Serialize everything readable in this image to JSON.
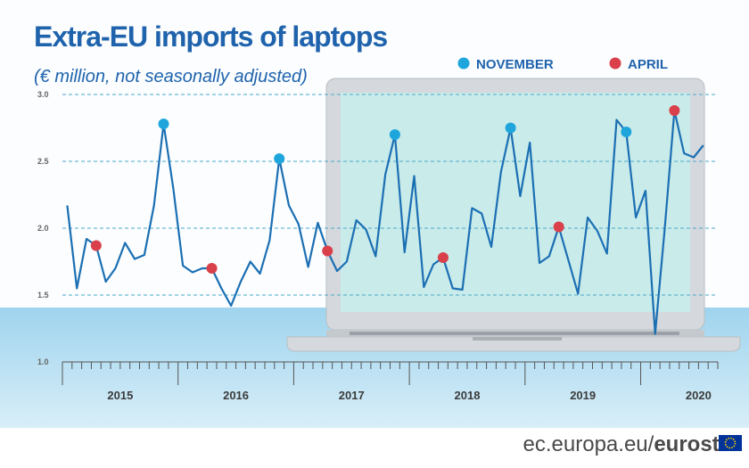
{
  "chart_data": {
    "type": "line",
    "title": "Extra-EU imports of laptops",
    "subtitle": "(€ million, not seasonally adjusted)",
    "x": [
      2015.0417,
      2015.125,
      2015.2083,
      2015.2917,
      2015.375,
      2015.4583,
      2015.5417,
      2015.625,
      2015.7083,
      2015.7917,
      2015.875,
      2015.9583,
      2016.0417,
      2016.125,
      2016.2083,
      2016.2917,
      2016.375,
      2016.4583,
      2016.5417,
      2016.625,
      2016.7083,
      2016.7917,
      2016.875,
      2016.9583,
      2017.0417,
      2017.125,
      2017.2083,
      2017.2917,
      2017.375,
      2017.4583,
      2017.5417,
      2017.625,
      2017.7083,
      2017.7917,
      2017.875,
      2017.9583,
      2018.0417,
      2018.125,
      2018.2083,
      2018.2917,
      2018.375,
      2018.4583,
      2018.5417,
      2018.625,
      2018.7083,
      2018.7917,
      2018.875,
      2018.9583,
      2019.0417,
      2019.125,
      2019.2083,
      2019.2917,
      2019.375,
      2019.4583,
      2019.5417,
      2019.625,
      2019.7083,
      2019.7917,
      2019.875,
      2019.9583,
      2020.0417,
      2020.125,
      2020.2083,
      2020.2917,
      2020.375,
      2020.4583,
      2020.5417
    ],
    "values": [
      2.17,
      1.55,
      1.92,
      1.87,
      1.6,
      1.7,
      1.89,
      1.77,
      1.8,
      2.17,
      2.78,
      2.3,
      1.72,
      1.67,
      1.7,
      1.7,
      1.55,
      1.42,
      1.6,
      1.75,
      1.66,
      1.91,
      2.52,
      2.17,
      2.03,
      1.71,
      2.04,
      1.83,
      1.68,
      1.75,
      2.06,
      1.99,
      1.79,
      2.4,
      2.7,
      1.82,
      2.39,
      1.56,
      1.73,
      1.78,
      1.55,
      1.54,
      2.15,
      2.11,
      1.86,
      2.42,
      2.75,
      2.24,
      2.64,
      1.74,
      1.79,
      2.01,
      1.76,
      1.51,
      2.08,
      1.98,
      1.81,
      2.81,
      2.72,
      2.08,
      2.28,
      1.21,
      2.0,
      2.88,
      2.56,
      2.53,
      2.62
    ],
    "color": "#1b6fb3",
    "series": [
      {
        "name": "NOVEMBER",
        "color": "#1ea6dc",
        "values": [
          null,
          null,
          null,
          null,
          null,
          null,
          null,
          null,
          null,
          null,
          2.78,
          null,
          null,
          null,
          null,
          null,
          null,
          null,
          null,
          null,
          null,
          null,
          2.52,
          null,
          null,
          null,
          null,
          null,
          null,
          null,
          null,
          null,
          null,
          null,
          2.7,
          null,
          null,
          null,
          null,
          null,
          null,
          null,
          null,
          null,
          null,
          null,
          2.75,
          null,
          null,
          null,
          null,
          null,
          null,
          null,
          null,
          null,
          null,
          null,
          2.72,
          null,
          null,
          null,
          null,
          null,
          null,
          null,
          null
        ]
      },
      {
        "name": "APRIL",
        "color": "#d9404a",
        "values": [
          null,
          null,
          null,
          1.87,
          null,
          null,
          null,
          null,
          null,
          null,
          null,
          null,
          null,
          null,
          null,
          1.7,
          null,
          null,
          null,
          null,
          null,
          null,
          null,
          null,
          null,
          null,
          null,
          1.83,
          null,
          null,
          null,
          null,
          null,
          null,
          null,
          null,
          null,
          null,
          null,
          1.78,
          null,
          null,
          null,
          null,
          null,
          null,
          null,
          null,
          null,
          null,
          null,
          2.01,
          null,
          null,
          null,
          null,
          null,
          null,
          null,
          null,
          null,
          null,
          null,
          2.88,
          null,
          null,
          null
        ]
      }
    ],
    "xlim": [
      2015,
      2020.6667
    ],
    "xticks": [
      {
        "value": 2015.5,
        "label": "2015"
      },
      {
        "value": 2016.5,
        "label": "2016"
      },
      {
        "value": 2017.5,
        "label": "2017"
      },
      {
        "value": 2018.5,
        "label": "2018"
      },
      {
        "value": 2019.5,
        "label": "2019"
      },
      {
        "value": 2020.5,
        "label": "2020"
      }
    ],
    "ylim": [
      1.0,
      3.0
    ],
    "yticks": [
      {
        "value": 1.0,
        "label": "1.0"
      },
      {
        "value": 1.5,
        "label": "1.5"
      },
      {
        "value": 2.0,
        "label": "2.0"
      },
      {
        "value": 2.5,
        "label": "2.5"
      },
      {
        "value": 3.0,
        "label": "3.0"
      }
    ],
    "grid": true
  },
  "footer": {
    "domain": "ec.europa.eu/",
    "brand": "eurostat"
  }
}
